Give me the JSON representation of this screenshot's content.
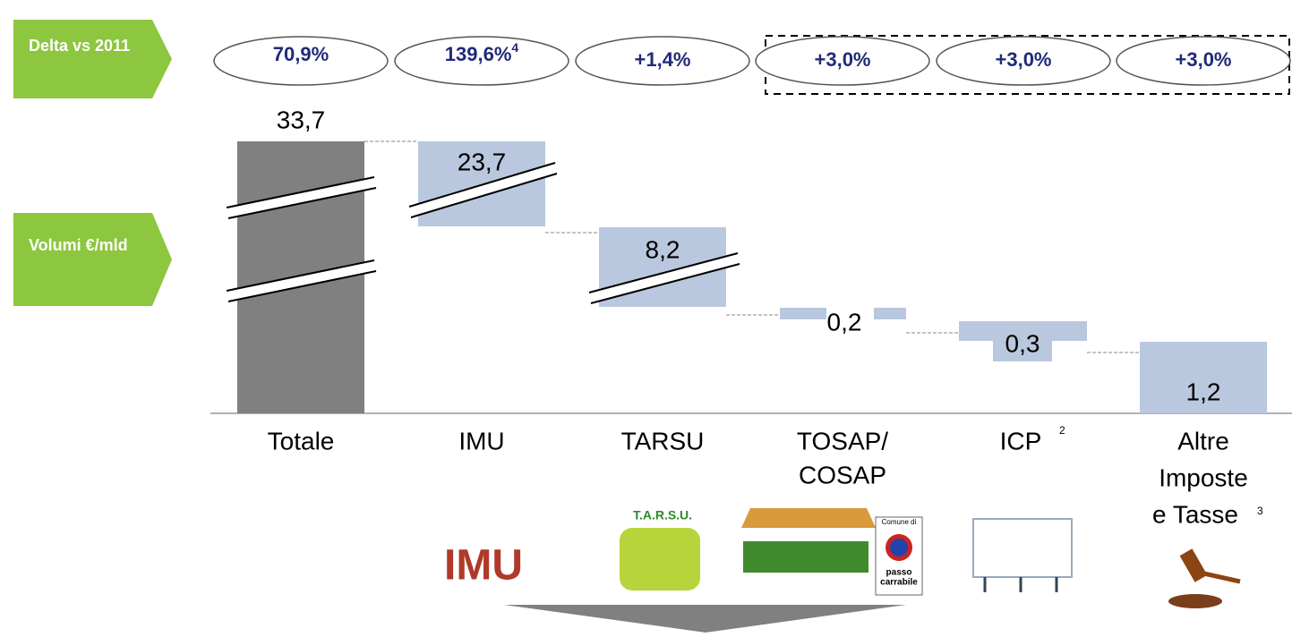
{
  "side_labels": [
    "Delta vs 2011",
    "Volumi €/mld"
  ],
  "deltas": [
    "70,9%",
    "139,6%",
    "+1,4%",
    "+3,0%",
    "+3,0%",
    "+3,0%"
  ],
  "delta_notes": {
    "1": "4"
  },
  "categories": [
    "Totale",
    "IMU",
    "TARSU",
    "TOSAP/",
    "COSAP",
    "ICP",
    "Altre",
    "Imposte",
    "e Tasse"
  ],
  "category_notes": {
    "icp": "2",
    "altre": "3"
  },
  "value_labels": [
    "33,7",
    "23,7",
    "8,2",
    "0,2",
    "0,3",
    "1,2"
  ],
  "icon_texts": {
    "tarsu": "T.A.R.S.U.",
    "imu": "IMU",
    "sign": [
      "Comune di",
      "passo",
      "carrabile"
    ]
  }
}
